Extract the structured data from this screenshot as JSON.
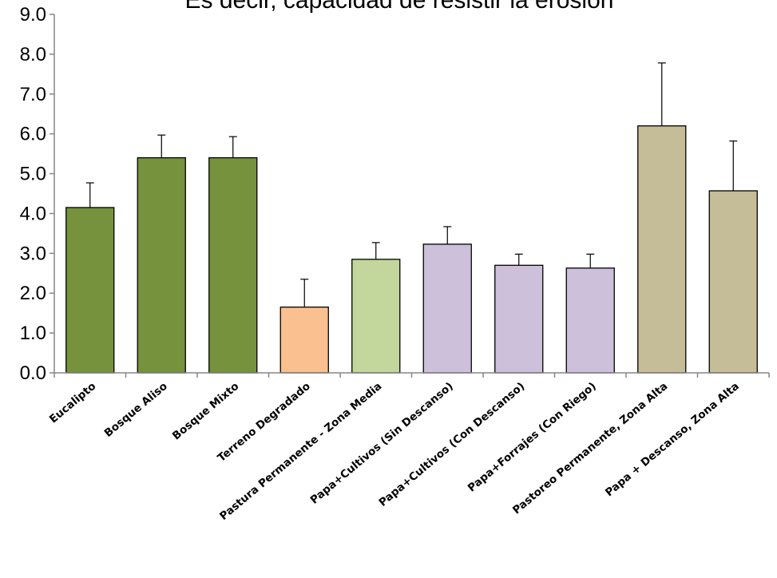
{
  "chart_data": {
    "type": "bar",
    "title": "Es decir, capacidad de resistir la erosión",
    "xlabel": "",
    "ylabel": "",
    "ylim": [
      0,
      9
    ],
    "yticks": [
      "0.0",
      "1.0",
      "2.0",
      "3.0",
      "4.0",
      "5.0",
      "6.0",
      "7.0",
      "8.0",
      "9.0"
    ],
    "grid": false,
    "categories": [
      "Eucalipto",
      "Bosque Aliso",
      "Bosque Mixto",
      "Terreno Degradado",
      "Pastura Permanente - Zona Media",
      "Papa+Cultivos (Sin Descanso)",
      "Papa+Cultivos (Con Descanso)",
      "Papa+Forrajes (Con Riego)",
      "Pastoreo Permanente, Zona Alta",
      "Papa + Descanso, Zona Alta"
    ],
    "values": [
      4.15,
      5.4,
      5.4,
      1.65,
      2.85,
      3.23,
      2.7,
      2.63,
      6.2,
      4.57
    ],
    "error_plus": [
      0.62,
      0.57,
      0.53,
      0.7,
      0.42,
      0.44,
      0.28,
      0.35,
      1.58,
      1.25
    ],
    "colors": [
      "#76923c",
      "#76923c",
      "#76923c",
      "#fac08f",
      "#c3d69b",
      "#ccc0da",
      "#ccc0da",
      "#ccc0da",
      "#c4bd97",
      "#c4bd97"
    ]
  }
}
